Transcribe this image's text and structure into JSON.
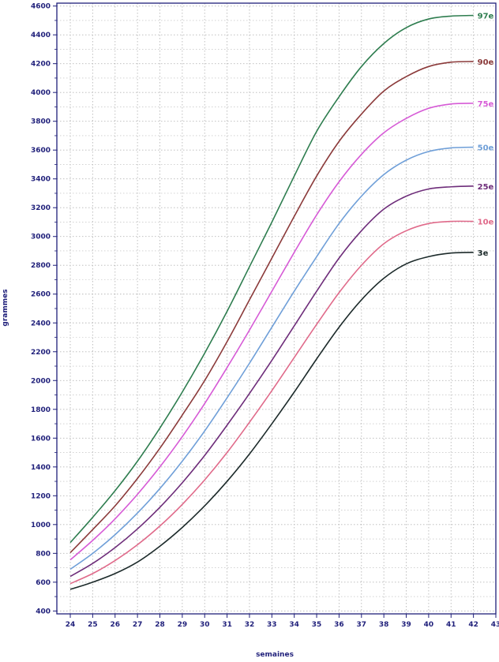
{
  "chart_data": {
    "type": "line",
    "title": "",
    "xlabel": "semaines",
    "ylabel": "grammes",
    "xlim": [
      23.4,
      43
    ],
    "ylim": [
      380,
      4620
    ],
    "x_ticks": [
      24,
      25,
      26,
      27,
      28,
      29,
      30,
      31,
      32,
      33,
      34,
      35,
      36,
      37,
      38,
      39,
      40,
      41,
      42,
      43
    ],
    "y_ticks": [
      400,
      600,
      800,
      1000,
      1200,
      1400,
      1600,
      1800,
      2000,
      2200,
      2400,
      2600,
      2800,
      3000,
      3200,
      3400,
      3600,
      3800,
      4000,
      4200,
      4400,
      4600
    ],
    "grid": true,
    "legend": "end-of-line labels",
    "x": [
      24,
      25,
      26,
      27,
      28,
      29,
      30,
      31,
      32,
      33,
      34,
      35,
      36,
      37,
      38,
      39,
      40,
      41,
      42
    ],
    "series": [
      {
        "name": "97e",
        "color": "#2e7d4f",
        "values": [
          875,
          1050,
          1235,
          1440,
          1670,
          1920,
          2190,
          2480,
          2790,
          3100,
          3420,
          3730,
          3970,
          4180,
          4340,
          4450,
          4510,
          4530,
          4535
        ]
      },
      {
        "name": "90e",
        "color": "#8b3a3a",
        "values": [
          805,
          965,
          1130,
          1320,
          1530,
          1760,
          2000,
          2270,
          2560,
          2850,
          3140,
          3420,
          3660,
          3850,
          4010,
          4110,
          4180,
          4210,
          4215
        ]
      },
      {
        "name": "75e",
        "color": "#d65ad6",
        "values": [
          755,
          890,
          1040,
          1210,
          1400,
          1610,
          1840,
          2090,
          2350,
          2620,
          2890,
          3150,
          3380,
          3570,
          3720,
          3820,
          3890,
          3920,
          3925
        ]
      },
      {
        "name": "50e",
        "color": "#6f9fd8",
        "values": [
          690,
          800,
          930,
          1080,
          1250,
          1440,
          1650,
          1880,
          2120,
          2370,
          2620,
          2860,
          3090,
          3280,
          3430,
          3530,
          3590,
          3615,
          3620
        ]
      },
      {
        "name": "25e",
        "color": "#6e2d7a",
        "values": [
          640,
          730,
          840,
          970,
          1120,
          1290,
          1480,
          1690,
          1910,
          2140,
          2380,
          2620,
          2850,
          3040,
          3190,
          3280,
          3330,
          3345,
          3350
        ]
      },
      {
        "name": "10e",
        "color": "#e06a8a",
        "values": [
          590,
          660,
          750,
          860,
          990,
          1140,
          1310,
          1500,
          1710,
          1930,
          2160,
          2390,
          2610,
          2800,
          2950,
          3040,
          3090,
          3105,
          3105
        ]
      },
      {
        "name": "3e",
        "color": "#1c2a2a",
        "values": [
          550,
          600,
          660,
          740,
          850,
          980,
          1130,
          1300,
          1490,
          1700,
          1920,
          2150,
          2370,
          2560,
          2710,
          2810,
          2860,
          2885,
          2890
        ]
      }
    ]
  }
}
